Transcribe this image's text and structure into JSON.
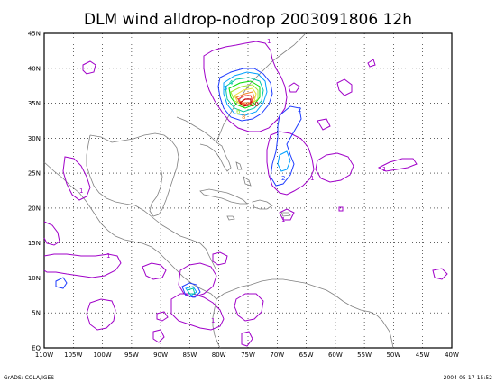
{
  "title": "DLM wind alldrop-nodrop 2003091806 12h",
  "map": {
    "lon_range": [
      -110,
      -40
    ],
    "lat_range": [
      0,
      45
    ],
    "x_tick_labels": [
      "110W",
      "105W",
      "100W",
      "95W",
      "90W",
      "85W",
      "80W",
      "75W",
      "70W",
      "65W",
      "60W",
      "55W",
      "50W",
      "45W",
      "40W"
    ],
    "y_tick_labels": [
      "EQ",
      "5N",
      "10N",
      "15N",
      "20N",
      "25N",
      "30N",
      "35N",
      "40N",
      "45N"
    ],
    "coastline_color": "#808080",
    "grid_style": "dotted",
    "contour_colors": {
      "1": "#a000c8",
      "2": "#1e3cff",
      "3": "#00a0ff",
      "4": "#00c8a0",
      "5": "#00dc00",
      "6": "#a0e632",
      "7": "#e6dc32",
      "8": "#f08228",
      "9": "#fa3c3c",
      "10": "#c80000"
    },
    "contour_labels": [
      "1",
      "2",
      "3",
      "4",
      "6",
      "8",
      "10"
    ]
  },
  "footer": {
    "left": "GrADS: COLA/IGES",
    "right": "2004-05-17-15:52"
  }
}
